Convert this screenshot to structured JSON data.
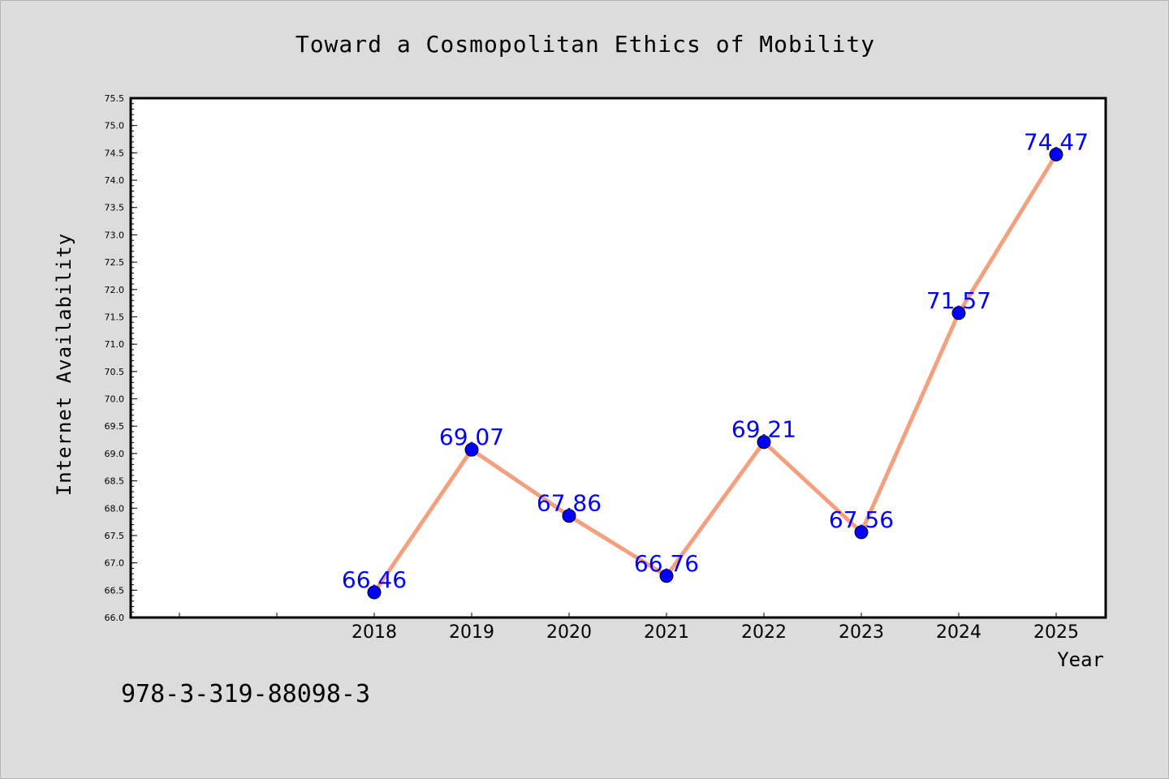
{
  "chart_data": {
    "type": "line",
    "title": "Toward a Cosmopolitan Ethics of Mobility",
    "xlabel": "Year",
    "ylabel": "Internet Availability",
    "categories": [
      "2018",
      "2019",
      "2020",
      "2021",
      "2022",
      "2023",
      "2024",
      "2025"
    ],
    "series": [
      {
        "values": [
          66.46,
          69.07,
          67.86,
          66.76,
          69.21,
          67.56,
          71.57,
          74.47
        ]
      }
    ],
    "data_labels": [
      "66.46",
      "69.07",
      "67.86",
      "66.76",
      "69.21",
      "67.56",
      "71.57",
      "74.47"
    ],
    "ylim": [
      66.0,
      75.5
    ],
    "y_ticks": [
      "66.0",
      "66.5",
      "67.0",
      "67.5",
      "68.0",
      "68.5",
      "69.0",
      "69.5",
      "70.0",
      "70.5",
      "71.0",
      "71.5",
      "72.0",
      "72.5",
      "73.0",
      "73.5",
      "74.0",
      "74.5",
      "75.0",
      "75.5"
    ],
    "grid": false,
    "legend": "none",
    "colors": {
      "line": "#f4a07e",
      "marker": "#0000ff",
      "label": "#0000ff",
      "plot_bg": "#ffffff",
      "figure_bg": "#dcdcdc"
    }
  },
  "footer": {
    "isbn": "978-3-319-88098-3"
  }
}
